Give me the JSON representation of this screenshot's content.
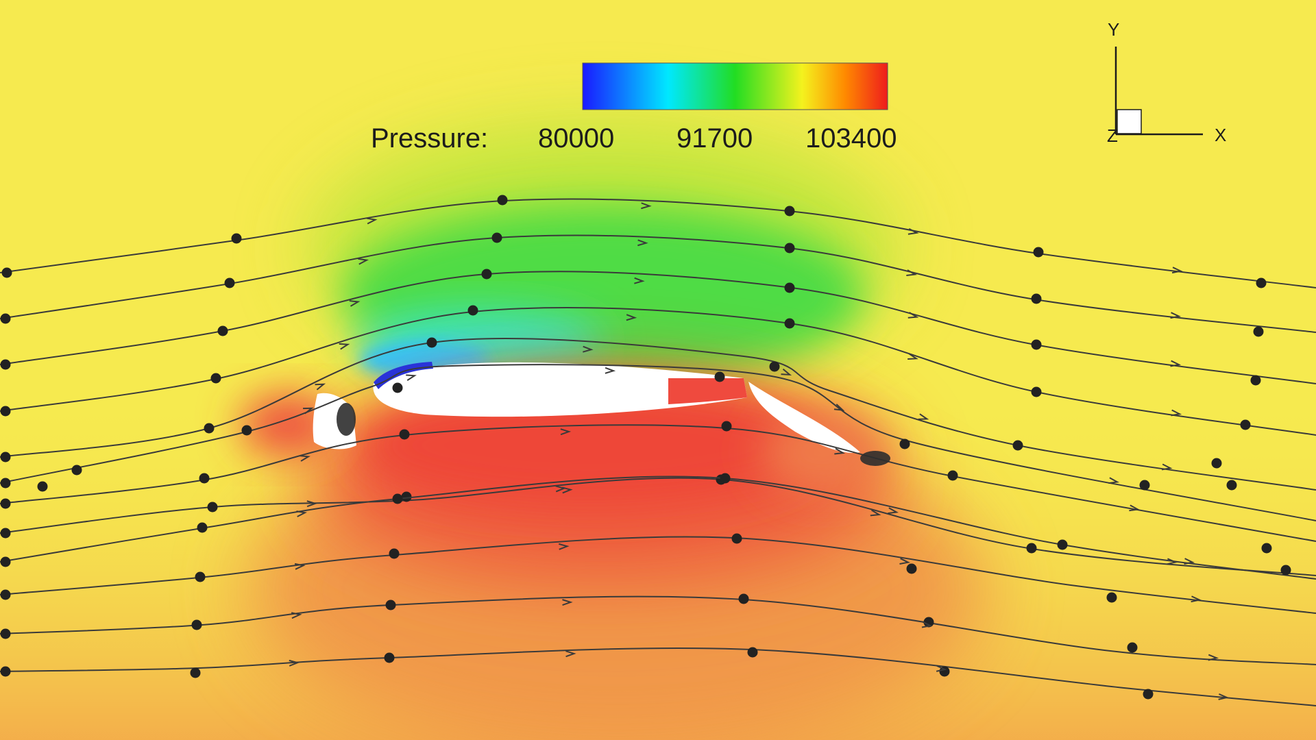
{
  "legend": {
    "label": "Pressure:",
    "ticks": [
      "80000",
      "91700",
      "103400"
    ],
    "colormap": [
      "#1a1aff",
      "#00e8ff",
      "#22dd22",
      "#f4f21e",
      "#ff8a00",
      "#ee1c1c"
    ]
  },
  "triad": {
    "x_label": "X",
    "y_label": "Y",
    "z_label": "Z"
  },
  "colors": {
    "background": "#f6ea4f",
    "high_pressure": "#ee4c40",
    "low_pressure": "#28d0ff",
    "streamline": "#3a3a3a",
    "body": "#ffffff"
  }
}
